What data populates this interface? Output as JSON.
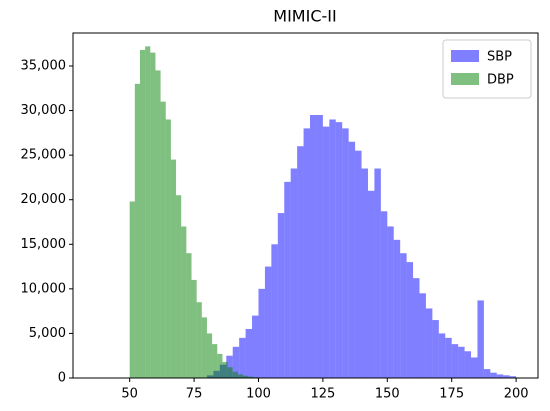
{
  "chart_data": {
    "type": "histogram",
    "title": "MIMIC-II",
    "series": [
      {
        "name": "SBP",
        "color": "#0000ff",
        "bins": [
          80,
          82.5,
          85,
          87.5,
          90,
          92.5,
          95,
          97.5,
          100,
          102.5,
          105,
          107.5,
          110,
          112.5,
          115,
          117.5,
          120,
          122.5,
          125,
          127.5,
          130,
          132.5,
          135,
          137.5,
          140,
          142.5,
          145,
          147.5,
          150,
          152.5,
          155,
          157.5,
          160,
          162.5,
          165,
          167.5,
          170,
          172.5,
          175,
          177.5,
          180,
          182.5,
          185,
          187.5,
          190,
          192.5,
          195,
          197.5,
          200
        ],
        "values": [
          300,
          800,
          1500,
          2500,
          3500,
          4500,
          5500,
          7000,
          10000,
          12500,
          15000,
          18500,
          22000,
          23500,
          26000,
          28000,
          29500,
          29500,
          28200,
          29000,
          28700,
          28000,
          26500,
          25500,
          23500,
          21000,
          23500,
          18700,
          17000,
          15500,
          14000,
          13000,
          11200,
          9500,
          7800,
          6500,
          5000,
          4500,
          3800,
          3500,
          3000,
          2300,
          8700,
          1000,
          600,
          400,
          300,
          200
        ]
      },
      {
        "name": "DBP",
        "color": "#008000",
        "bins": [
          50,
          52,
          54,
          56,
          58,
          60,
          62,
          64,
          66,
          68,
          70,
          72,
          74,
          76,
          78,
          80,
          82,
          84,
          86,
          88,
          90,
          92,
          94,
          96,
          98,
          100
        ],
        "values": [
          19800,
          33000,
          36800,
          37200,
          36500,
          34500,
          31000,
          29000,
          24500,
          20500,
          17000,
          14000,
          11000,
          8500,
          6800,
          5000,
          3800,
          2700,
          1800,
          1200,
          700,
          400,
          250,
          150,
          100
        ]
      }
    ],
    "xlim": [
      28,
      208.5
    ],
    "xticks": [
      50,
      75,
      100,
      125,
      150,
      175,
      200
    ],
    "ylim": [
      0,
      38700
    ],
    "yticks": [
      0,
      {
        "value": 5000,
        "label": "5,000"
      },
      {
        "value": 10000,
        "label": "10,000"
      },
      {
        "value": 15000,
        "label": "15,000"
      },
      {
        "value": 20000,
        "label": "20,000"
      },
      {
        "value": 25000,
        "label": "25,000"
      },
      {
        "value": 30000,
        "label": "30,000"
      },
      {
        "value": 35000,
        "label": "35,000"
      }
    ],
    "legend": "upper right"
  }
}
